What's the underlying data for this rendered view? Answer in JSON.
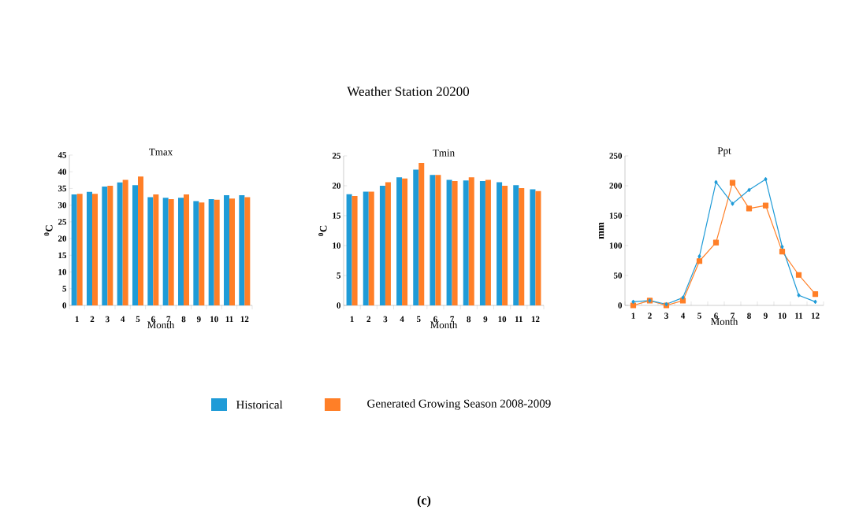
{
  "chart_data": [
    {
      "type": "bar",
      "title": "Tmax",
      "xlabel": "Month",
      "ylabel": "$^{0}$C",
      "categories": [
        "1",
        "2",
        "3",
        "4",
        "5",
        "6",
        "7",
        "8",
        "9",
        "10",
        "11",
        "12"
      ],
      "ylim": [
        0,
        45
      ],
      "yticks": [
        0,
        5,
        10,
        15,
        20,
        25,
        30,
        35,
        40,
        45
      ],
      "grid": false,
      "legend": "bottom",
      "annotations": [
        "Weather Station 20200",
        "(c)"
      ],
      "series": [
        {
          "name": "Historical",
          "color": "#1f9bd7",
          "values": [
            33.2,
            34.0,
            35.6,
            36.8,
            36.0,
            32.4,
            32.2,
            32.2,
            31.2,
            31.8,
            33.0,
            33.0
          ]
        },
        {
          "name": "Generated Growing Season 2008-2009",
          "color": "#ff7f27",
          "values": [
            33.4,
            33.4,
            35.8,
            37.6,
            38.6,
            33.2,
            31.8,
            33.2,
            30.8,
            31.6,
            32.0,
            32.4
          ]
        }
      ]
    },
    {
      "type": "bar",
      "title": "Tmin",
      "xlabel": "Month",
      "ylabel": "$^{0}$C",
      "categories": [
        "1",
        "2",
        "3",
        "4",
        "5",
        "6",
        "7",
        "8",
        "9",
        "10",
        "11",
        "12"
      ],
      "ylim": [
        0,
        25
      ],
      "yticks": [
        0,
        5,
        10,
        15,
        20,
        25
      ],
      "grid": false,
      "series": [
        {
          "color": "#1f9bd7",
          "values": [
            18.6,
            19.0,
            20.0,
            21.4,
            22.7,
            21.8,
            21.0,
            20.9,
            20.8,
            20.6,
            20.1,
            19.4
          ]
        },
        {
          "color": "#ff7f27",
          "values": [
            18.3,
            19.0,
            20.6,
            21.2,
            23.8,
            21.8,
            20.8,
            21.4,
            21.0,
            20.0,
            19.6,
            19.1
          ]
        }
      ]
    },
    {
      "type": "line",
      "title": "Ppt",
      "xlabel": "Month",
      "ylabel": "mm",
      "categories": [
        "1",
        "2",
        "3",
        "4",
        "5",
        "6",
        "7",
        "8",
        "9",
        "10",
        "11",
        "12"
      ],
      "ylim": [
        0,
        250
      ],
      "yticks": [
        0,
        50,
        100,
        150,
        200,
        250
      ],
      "grid": false,
      "line_style": "solid",
      "series": [
        {
          "color": "#1f9bd7",
          "marker": "diamond",
          "values": [
            6,
            8,
            2,
            13,
            82,
            206,
            170,
            193,
            211,
            98,
            17,
            6
          ]
        },
        {
          "color": "#ff7f27",
          "marker": "square",
          "values": [
            0,
            8,
            0,
            8,
            74,
            105,
            205,
            162,
            167,
            90,
            51,
            19
          ]
        }
      ]
    }
  ]
}
